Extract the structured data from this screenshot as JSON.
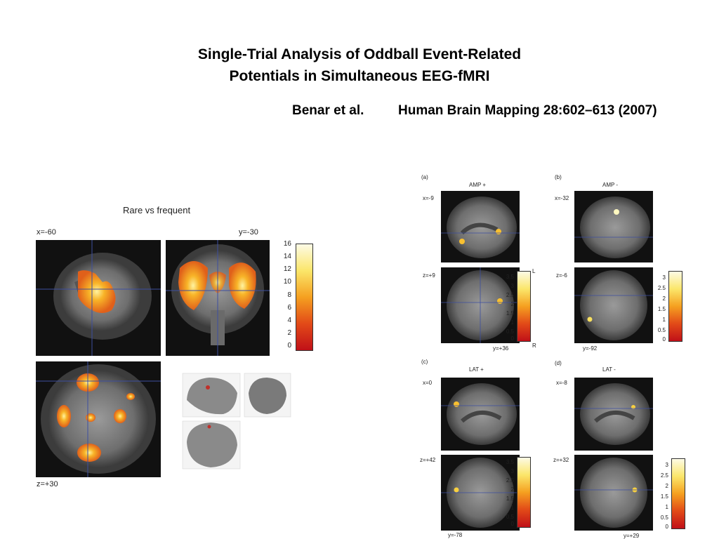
{
  "slide": {
    "title_line1": "Single-Trial Analysis of Oddball Event-Related",
    "title_line2": "Potentials in Simultaneous EEG-fMRI",
    "authors": "Benar et al.",
    "journal": "Human Brain Mapping 28:602–613 (2007)"
  },
  "left_figure": {
    "title": "Rare vs frequent",
    "sagittal_label": "x=-60",
    "coronal_label": "y=-30",
    "axial_label": "z=+30",
    "colorbar_ticks": [
      "16",
      "14",
      "12",
      "10",
      "8",
      "6",
      "4",
      "2",
      "0"
    ]
  },
  "right_figure": {
    "panels": [
      {
        "letter": "(a)",
        "title": "AMP +",
        "sag_label": "x=-9",
        "ax_label": "z=+9",
        "y_label": "y=+36",
        "left_mark": "L",
        "right_mark": "R",
        "ticks": [
          "3.5",
          "3",
          "2.5",
          "2",
          "1.5",
          "1",
          "0.5",
          "0"
        ]
      },
      {
        "letter": "(b)",
        "title": "AMP -",
        "sag_label": "x=-32",
        "ax_label": "z=-6",
        "y_label": "y=-92",
        "ticks": [
          "3",
          "2.5",
          "2",
          "1.5",
          "1",
          "0.5",
          "0"
        ]
      },
      {
        "letter": "(c)",
        "title": "LAT +",
        "sag_label": "x=0",
        "ax_label": "z=+42",
        "y_label": "y=-78",
        "ticks": [
          "3.5",
          "3",
          "2.5",
          "2",
          "1.5",
          "1",
          "0.5",
          "0"
        ]
      },
      {
        "letter": "(d)",
        "title": "LAT -",
        "sag_label": "x=-8",
        "ax_label": "z=+32",
        "y_label": "y=+29",
        "ticks": [
          "3",
          "2.5",
          "2",
          "1.5",
          "1",
          "0.5",
          "0"
        ]
      }
    ]
  }
}
